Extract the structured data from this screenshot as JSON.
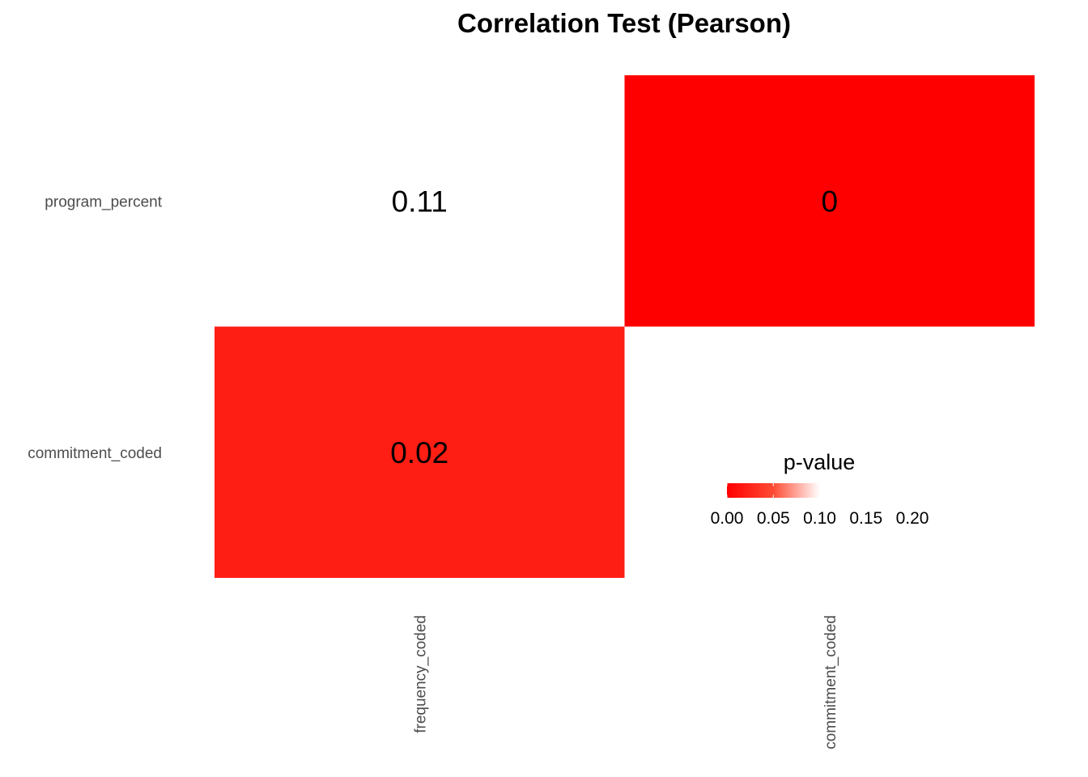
{
  "chart_data": {
    "type": "heatmap",
    "title": "Correlation Test (Pearson)",
    "x_categories": [
      "frequency_coded",
      "commitment_coded"
    ],
    "y_categories": [
      "program_percent",
      "commitment_coded"
    ],
    "cells": [
      {
        "x": "frequency_coded",
        "y": "program_percent",
        "value": 0.11,
        "label": "0.11"
      },
      {
        "x": "commitment_coded",
        "y": "program_percent",
        "value": 0.0,
        "label": "0"
      },
      {
        "x": "frequency_coded",
        "y": "commitment_coded",
        "value": 0.02,
        "label": "0.02"
      }
    ],
    "legend": {
      "title": "p-value",
      "placement": "inside-bottom-right",
      "ticks": [
        0.0,
        0.05,
        0.1,
        0.15,
        0.2
      ],
      "tick_labels": [
        "0.00",
        "0.05",
        "0.10",
        "0.15",
        "0.20"
      ],
      "range": [
        0,
        0.2
      ],
      "color_low": "#ff0000",
      "color_high": "#ffffff",
      "midpoint_value": 0.05,
      "color_mid": "#fe4b33",
      "white_at": 0.1
    },
    "grid": false
  }
}
